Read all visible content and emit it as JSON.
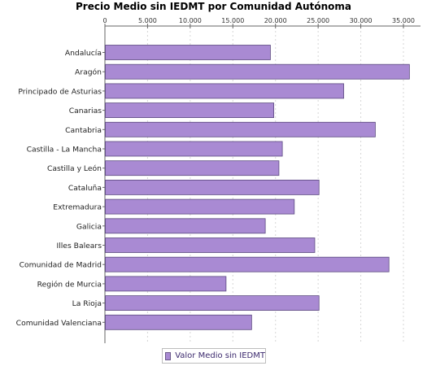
{
  "chart_data": {
    "type": "bar",
    "orientation": "horizontal",
    "title": "Precio Medio sin IEDMT por Comunidad Autónoma",
    "categories": [
      "Andalucía",
      "Aragón",
      "Principado de Asturias",
      "Canarias",
      "Cantabria",
      "Castilla - La Mancha",
      "Castilla y León",
      "Cataluña",
      "Extremadura",
      "Galicia",
      "Illes Balears",
      "Comunidad de Madrid",
      "Región de Murcia",
      "La Rioja",
      "Comunidad Valenciana"
    ],
    "series": [
      {
        "name": "Valor Medio sin IEDMT",
        "values": [
          19400,
          35700,
          28000,
          19800,
          31700,
          20800,
          20400,
          25100,
          22200,
          18800,
          24600,
          33300,
          14200,
          25100,
          17200
        ],
        "color": "#a98ad3"
      }
    ],
    "xlim": [
      0,
      37000
    ],
    "ticks": [
      0,
      5000,
      10000,
      15000,
      20000,
      25000,
      30000,
      35000
    ],
    "tick_labels": [
      "0",
      "5.000",
      "10.000",
      "15.000",
      "20.000",
      "25.000",
      "30.000",
      "35.000"
    ],
    "axis_position": "top",
    "grid": true,
    "legend": "bottom"
  }
}
